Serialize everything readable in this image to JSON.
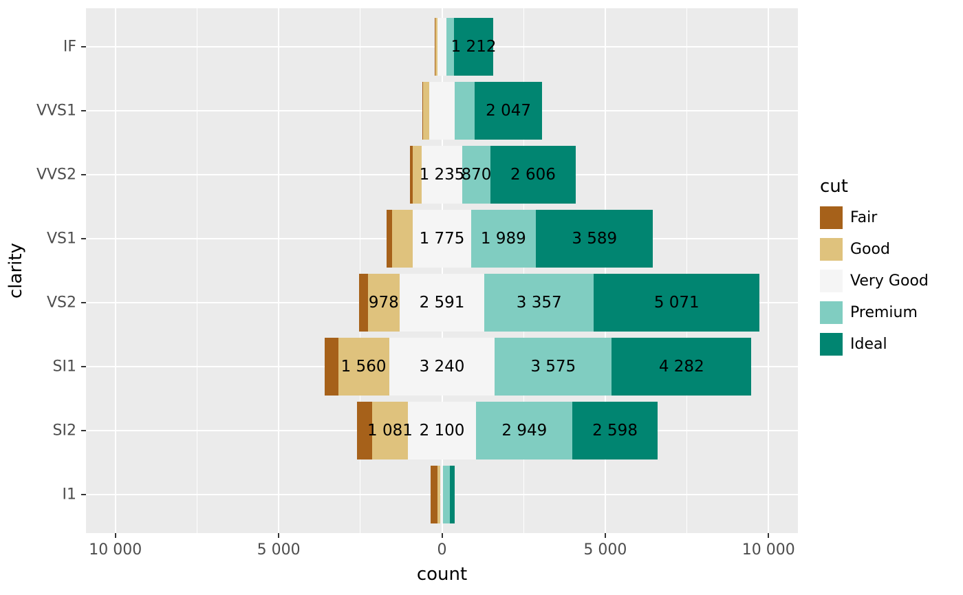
{
  "figure": {
    "background": "#ffffff",
    "panel_background": "#ebebeb",
    "grid_color": "#ffffff",
    "tick_mark_color": "#333333",
    "axis_text_color": "#4d4d4d",
    "axis_title_color": "#000000",
    "bar_label_color": "#000000"
  },
  "chart_data": {
    "type": "diverging_stacked_bar",
    "title": "",
    "xlabel": "count",
    "ylabel": "clarity",
    "categories": [
      "IF",
      "VVS1",
      "VVS2",
      "VS1",
      "VS2",
      "SI1",
      "SI2",
      "I1"
    ],
    "series": [
      {
        "name": "Fair",
        "color": "#a6611a",
        "values": [
          9,
          17,
          69,
          170,
          261,
          408,
          466,
          210
        ]
      },
      {
        "name": "Good",
        "color": "#dfc27d",
        "values": [
          71,
          186,
          286,
          648,
          978,
          1560,
          1081,
          96
        ]
      },
      {
        "name": "Very Good",
        "color": "#f5f5f5",
        "values": [
          268,
          789,
          1235,
          1775,
          2591,
          3240,
          2100,
          84
        ]
      },
      {
        "name": "Premium",
        "color": "#80cdc1",
        "values": [
          230,
          616,
          870,
          1989,
          3357,
          3575,
          2949,
          205
        ]
      },
      {
        "name": "Ideal",
        "color": "#018571",
        "values": [
          1212,
          2047,
          2606,
          3589,
          5071,
          4282,
          2598,
          146
        ]
      }
    ],
    "center_on_series": "Very Good",
    "bar_label_min": 800,
    "visible_bar_labels": {
      "IF": [
        "1 212"
      ],
      "VVS1": [
        "2 047"
      ],
      "VVS2": [
        "1 235",
        "870",
        "2 606"
      ],
      "VS1": [
        "1 775",
        "1 989",
        "3 589"
      ],
      "VS2": [
        "978",
        "2 591",
        "3 357",
        "5 071"
      ],
      "SI1": [
        "1 560",
        "3 240",
        "3 575",
        "4 282"
      ],
      "SI2": [
        "1 081",
        "2 100",
        "2 949",
        "2 598"
      ],
      "I1": []
    },
    "xlim": [
      -10900,
      10900
    ],
    "x_major_ticks": [
      {
        "value": -10000,
        "label": "10 000"
      },
      {
        "value": -5000,
        "label": "5 000"
      },
      {
        "value": 0,
        "label": "0"
      },
      {
        "value": 5000,
        "label": "5 000"
      },
      {
        "value": 10000,
        "label": "10 000"
      }
    ],
    "x_minor_ticks": [
      -7500,
      -2500,
      2500,
      7500
    ],
    "grid": true,
    "legend_position": "right"
  },
  "legend": {
    "title": "cut",
    "items": [
      {
        "label": "Fair",
        "color": "#a6611a"
      },
      {
        "label": "Good",
        "color": "#dfc27d"
      },
      {
        "label": "Very Good",
        "color": "#f5f5f5"
      },
      {
        "label": "Premium",
        "color": "#80cdc1"
      },
      {
        "label": "Ideal",
        "color": "#018571"
      }
    ]
  }
}
